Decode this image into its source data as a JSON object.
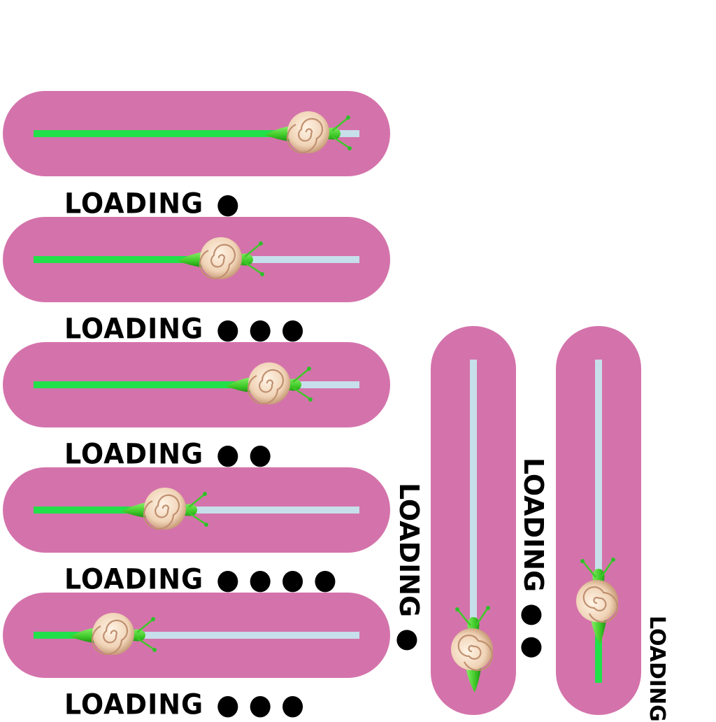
{
  "colors": {
    "bar_background": "#d473ab",
    "progress_fill": "#22e04a",
    "track_remaining": "#c7dfea",
    "snail_shell": "#f2dcc4",
    "snail_body": "#3ec928"
  },
  "icons": [
    "snail-icon"
  ],
  "horizontal_bars": [
    {
      "progress": 0.93,
      "label": "LOADING",
      "dots": "●"
    },
    {
      "progress": 0.66,
      "label": "LOADING",
      "dots": "● ● ●"
    },
    {
      "progress": 0.81,
      "label": "LOADING",
      "dots": "● ●"
    },
    {
      "progress": 0.49,
      "label": "LOADING",
      "dots": "● ● ● ●"
    },
    {
      "progress": 0.33,
      "label": "LOADING",
      "dots": "● ● ●"
    }
  ],
  "vertical_bars": [
    {
      "progress": 0.0,
      "label": "LOADING",
      "dots": "●"
    },
    {
      "progress": 0.15,
      "label": "LOADING",
      "dots": "● ●"
    }
  ],
  "extra_label": {
    "label": "LOADING"
  }
}
